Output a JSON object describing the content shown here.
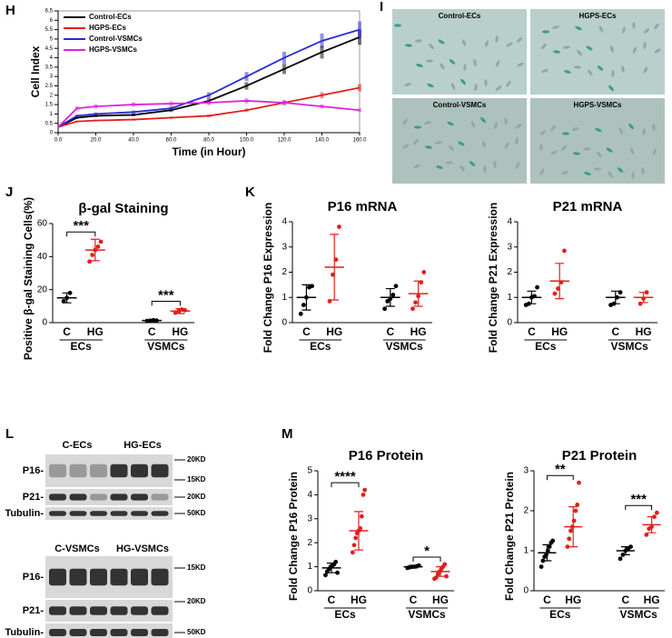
{
  "panel_labels": [
    "H",
    "I",
    "J",
    "K",
    "L",
    "M"
  ],
  "images": [
    "Control-ECs",
    "HGPS-ECs",
    "Control-VSMCs",
    "HGPS-VSMCs"
  ],
  "blots": [
    {
      "lanes": [
        "C-ECs",
        "HG-ECs"
      ],
      "rows": [
        "P16-",
        "P21-",
        "Tubulin-"
      ],
      "markers": [
        "20KD",
        "15KD",
        "20KD",
        "50KD"
      ]
    },
    {
      "lanes": [
        "C-VSMCs",
        "HG-VSMCs"
      ],
      "rows": [
        "P16-",
        "P21-",
        "Tubulin-"
      ],
      "markers": [
        "15KD",
        "20KD",
        "50KD"
      ]
    }
  ],
  "chart_data": [
    {
      "type": "line",
      "x_label": "Time (in Hour)",
      "y_label": "Cell Index",
      "x": [
        0,
        10,
        20,
        40,
        60,
        80,
        100,
        120,
        140,
        160
      ],
      "xlim": [
        0,
        160
      ],
      "xticks": [
        {
          "value": 0,
          "label": "0.0"
        },
        {
          "value": 20,
          "label": "20.0"
        },
        {
          "value": 40,
          "label": "40.0"
        },
        {
          "value": 60,
          "label": "60.0"
        },
        {
          "value": 80,
          "label": "80.0"
        },
        {
          "value": 100,
          "label": "100.0"
        },
        {
          "value": 120,
          "label": "120.0"
        },
        {
          "value": 140,
          "label": "140.0"
        },
        {
          "value": 160,
          "label": "160.0"
        }
      ],
      "ylim": [
        0,
        6.5
      ],
      "yticks": [
        0,
        0.5,
        1,
        1.5,
        2,
        2.5,
        3,
        3.5,
        4,
        4.5,
        5,
        5.5,
        6,
        6.5
      ],
      "series": [
        {
          "name": "Control-ECs",
          "color": "#000000",
          "values": [
            0.3,
            0.8,
            0.9,
            0.95,
            1.2,
            1.7,
            2.5,
            3.4,
            4.3,
            5.1
          ]
        },
        {
          "name": "HGPS-ECs",
          "color": "#e0201c",
          "values": [
            0.3,
            0.6,
            0.65,
            0.7,
            0.8,
            0.9,
            1.2,
            1.6,
            2.0,
            2.4
          ]
        },
        {
          "name": "Control-VSMCs",
          "color": "#2a2ad0",
          "values": [
            0.3,
            0.9,
            1.0,
            1.1,
            1.3,
            2.0,
            3.0,
            4.0,
            4.9,
            5.5
          ]
        },
        {
          "name": "HGPS-VSMCs",
          "color": "#e020e0",
          "values": [
            0.3,
            1.3,
            1.4,
            1.5,
            1.55,
            1.6,
            1.7,
            1.6,
            1.4,
            1.2
          ]
        }
      ]
    },
    {
      "type": "dot",
      "title": "β-gal Staining",
      "y_label": "Positive β-gal Staining Cells(%)",
      "ylim": [
        0,
        60
      ],
      "yticks": [
        0,
        20,
        40,
        60
      ],
      "categories": [
        "C",
        "HG",
        "C",
        "HG"
      ],
      "groups": [
        {
          "name": "ECs",
          "significance": "***"
        },
        {
          "name": "VSMCs",
          "significance": "***"
        }
      ],
      "samples": [
        {
          "color": "#000000",
          "points": [
            13,
            15,
            18
          ],
          "mean": 15,
          "sd": 3
        },
        {
          "color": "#e0201c",
          "points": [
            37,
            41,
            44,
            46,
            49
          ],
          "mean": 44,
          "sd": 6.5
        },
        {
          "color": "#000000",
          "points": [
            1,
            1.2,
            1.5,
            1.3
          ],
          "mean": 1.3,
          "sd": 0.3
        },
        {
          "color": "#e0201c",
          "points": [
            6,
            7,
            8,
            7.5
          ],
          "mean": 7,
          "sd": 1.5
        }
      ]
    },
    {
      "type": "dot",
      "title": "P16 mRNA",
      "y_label": "Fold Change P16 Expression",
      "ylim": [
        0,
        4
      ],
      "yticks": [
        0,
        1,
        2,
        3,
        4
      ],
      "categories": [
        "C",
        "HG",
        "C",
        "HG"
      ],
      "groups": [
        {
          "name": "ECs"
        },
        {
          "name": "VSMCs"
        }
      ],
      "samples": [
        {
          "color": "#000000",
          "points": [
            0.35,
            0.7,
            1.0,
            1.4,
            1.45
          ],
          "mean": 1.0,
          "sd": 0.5
        },
        {
          "color": "#e0201c",
          "points": [
            0.85,
            1.9,
            2.5,
            3.8
          ],
          "mean": 2.2,
          "sd": 1.3
        },
        {
          "color": "#000000",
          "points": [
            0.55,
            0.85,
            0.95,
            1.1,
            1.45
          ],
          "mean": 1.0,
          "sd": 0.35
        },
        {
          "color": "#e0201c",
          "points": [
            0.55,
            0.8,
            1.05,
            1.6,
            2.0
          ],
          "mean": 1.15,
          "sd": 0.5
        }
      ]
    },
    {
      "type": "dot",
      "title": "P21 mRNA",
      "y_label": "Fold Change P21 Expression",
      "ylim": [
        0,
        4
      ],
      "yticks": [
        0,
        1,
        2,
        3,
        4
      ],
      "categories": [
        "C",
        "HG",
        "C",
        "HG"
      ],
      "groups": [
        {
          "name": "ECs"
        },
        {
          "name": "VSMCs"
        }
      ],
      "samples": [
        {
          "color": "#000000",
          "points": [
            0.7,
            0.75,
            1.0,
            1.05,
            1.4
          ],
          "mean": 1.0,
          "sd": 0.25
        },
        {
          "color": "#e0201c",
          "points": [
            1.15,
            1.35,
            1.6,
            2.85
          ],
          "mean": 1.65,
          "sd": 0.7
        },
        {
          "color": "#000000",
          "points": [
            0.7,
            0.75,
            1.0,
            1.2
          ],
          "mean": 1.0,
          "sd": 0.25
        },
        {
          "color": "#e0201c",
          "points": [
            0.75,
            0.95,
            1.2
          ],
          "mean": 1.0,
          "sd": 0.2
        }
      ]
    },
    {
      "type": "dot",
      "title": "P16 Protein",
      "y_label": "Fold Change P16 Protein",
      "ylim": [
        0,
        5
      ],
      "yticks": [
        0,
        1,
        2,
        3,
        4,
        5
      ],
      "categories": [
        "C",
        "HG",
        "C",
        "HG"
      ],
      "groups": [
        {
          "name": "ECs",
          "significance": "****"
        },
        {
          "name": "VSMCs",
          "significance": "*"
        }
      ],
      "samples": [
        {
          "color": "#000000",
          "points": [
            0.65,
            0.8,
            0.9,
            1.0,
            1.05,
            1.1,
            1.2,
            0.75
          ],
          "mean": 0.95,
          "sd": 0.2
        },
        {
          "color": "#e0201c",
          "points": [
            1.6,
            1.9,
            2.2,
            2.4,
            2.5,
            2.6,
            3.1,
            4.0,
            4.2
          ],
          "mean": 2.5,
          "sd": 0.8
        },
        {
          "color": "#000000",
          "points": [
            0.95,
            0.98,
            1.0,
            1.0,
            1.02,
            1.05
          ],
          "mean": 1.0,
          "sd": 0.05
        },
        {
          "color": "#e0201c",
          "points": [
            0.5,
            0.55,
            0.7,
            0.8,
            0.9,
            1.0,
            1.1,
            0.6
          ],
          "mean": 0.8,
          "sd": 0.2
        }
      ]
    },
    {
      "type": "dot",
      "title": "P21 Protein",
      "y_label": "Fold Change P21 Protein",
      "ylim": [
        0,
        3
      ],
      "yticks": [
        0,
        1,
        2,
        3
      ],
      "categories": [
        "C",
        "HG",
        "C",
        "HG"
      ],
      "groups": [
        {
          "name": "ECs",
          "significance": "**"
        },
        {
          "name": "VSMCs",
          "significance": "***"
        }
      ],
      "samples": [
        {
          "color": "#000000",
          "points": [
            0.6,
            0.75,
            0.85,
            0.9,
            1.0,
            1.1,
            1.2,
            1.25
          ],
          "mean": 0.95,
          "sd": 0.2
        },
        {
          "color": "#e0201c",
          "points": [
            1.1,
            1.3,
            1.5,
            1.6,
            1.75,
            2.0,
            2.15,
            2.7
          ],
          "mean": 1.6,
          "sd": 0.5
        },
        {
          "color": "#000000",
          "points": [
            0.8,
            0.9,
            1.0,
            1.05,
            1.1
          ],
          "mean": 1.0,
          "sd": 0.1
        },
        {
          "color": "#e0201c",
          "points": [
            1.4,
            1.55,
            1.6,
            1.85,
            1.95
          ],
          "mean": 1.65,
          "sd": 0.2
        }
      ]
    }
  ]
}
